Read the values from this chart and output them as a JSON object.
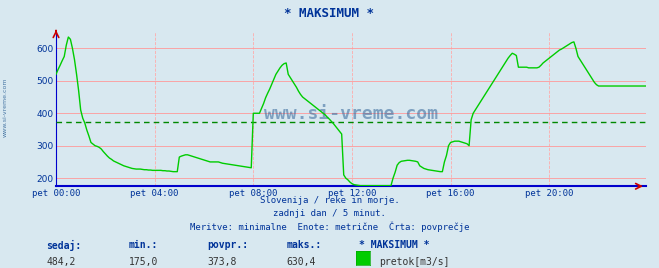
{
  "title": "* MAKSIMUM *",
  "bg_color": "#d8e8f0",
  "plot_bg_color": "#d8e8f0",
  "line_color": "#00cc00",
  "avg_line_color": "#008800",
  "grid_color_h": "#ff9999",
  "grid_color_v": "#ffaaaa",
  "axis_color": "#0000cc",
  "text_color": "#003399",
  "ylim": [
    175,
    650
  ],
  "yticks": [
    200,
    300,
    400,
    500,
    600
  ],
  "avg_value": 373.8,
  "min_value": 175.0,
  "max_value": 630.4,
  "current_value": 484.2,
  "subtitle1": "Slovenija / reke in morje.",
  "subtitle2": "zadnji dan / 5 minut.",
  "subtitle3": "Meritve: minimalne  Enote: metrične  Črta: povprečje",
  "label_sedaj": "sedaj:",
  "label_min": "min.:",
  "label_povpr": "povpr.:",
  "label_maks": "maks.:",
  "label_maks_val": "* MAKSIMUM *",
  "label_unit": "pretok[m3/s]",
  "xtick_labels": [
    "pet 00:00",
    "pet 04:00",
    "pet 08:00",
    "pet 12:00",
    "pet 16:00",
    "pet 20:00"
  ],
  "xtick_positions": [
    0,
    48,
    96,
    144,
    192,
    240
  ],
  "n_points": 288,
  "data_y": [
    520,
    535,
    548,
    562,
    575,
    610,
    635,
    628,
    600,
    565,
    520,
    470,
    410,
    385,
    370,
    348,
    330,
    310,
    305,
    300,
    298,
    295,
    290,
    282,
    275,
    268,
    262,
    258,
    253,
    250,
    247,
    244,
    241,
    238,
    236,
    234,
    232,
    230,
    229,
    228,
    228,
    228,
    227,
    226,
    226,
    225,
    225,
    224,
    224,
    224,
    224,
    224,
    223,
    223,
    222,
    222,
    221,
    220,
    220,
    220,
    265,
    268,
    270,
    272,
    272,
    270,
    268,
    266,
    264,
    262,
    260,
    258,
    256,
    254,
    252,
    250,
    250,
    250,
    250,
    250,
    248,
    246,
    245,
    244,
    243,
    242,
    241,
    240,
    239,
    238,
    237,
    236,
    235,
    234,
    233,
    232,
    400,
    400,
    400,
    400,
    415,
    430,
    448,
    462,
    475,
    490,
    505,
    520,
    530,
    540,
    548,
    553,
    555,
    520,
    510,
    500,
    490,
    480,
    468,
    458,
    450,
    445,
    440,
    435,
    430,
    425,
    420,
    415,
    410,
    405,
    400,
    395,
    388,
    382,
    375,
    368,
    360,
    352,
    344,
    336,
    210,
    200,
    195,
    188,
    183,
    180,
    179,
    178,
    177,
    177,
    177,
    177,
    177,
    177,
    177,
    177,
    177,
    177,
    177,
    177,
    177,
    177,
    177,
    177,
    200,
    218,
    240,
    248,
    252,
    253,
    254,
    255,
    255,
    254,
    253,
    252,
    250,
    238,
    234,
    230,
    228,
    226,
    225,
    224,
    223,
    222,
    221,
    220,
    220,
    250,
    270,
    300,
    310,
    312,
    314,
    314,
    314,
    312,
    310,
    308,
    306,
    300,
    380,
    400,
    410,
    420,
    430,
    440,
    450,
    460,
    470,
    480,
    490,
    500,
    510,
    520,
    530,
    540,
    550,
    560,
    570,
    578,
    585,
    582,
    578,
    542,
    542,
    542,
    542,
    542,
    540,
    540,
    540,
    540,
    540,
    542,
    548,
    555,
    560,
    565,
    570,
    575,
    580,
    585,
    590,
    595,
    598,
    602,
    606,
    610,
    614,
    618,
    620,
    600,
    575,
    565,
    555,
    545,
    535,
    525,
    515,
    505,
    495,
    488,
    484,
    484,
    484,
    484,
    484,
    484,
    484,
    484,
    484,
    484,
    484,
    484,
    484,
    484,
    484,
    484,
    484,
    484,
    484,
    484,
    484,
    484,
    484,
    484
  ]
}
